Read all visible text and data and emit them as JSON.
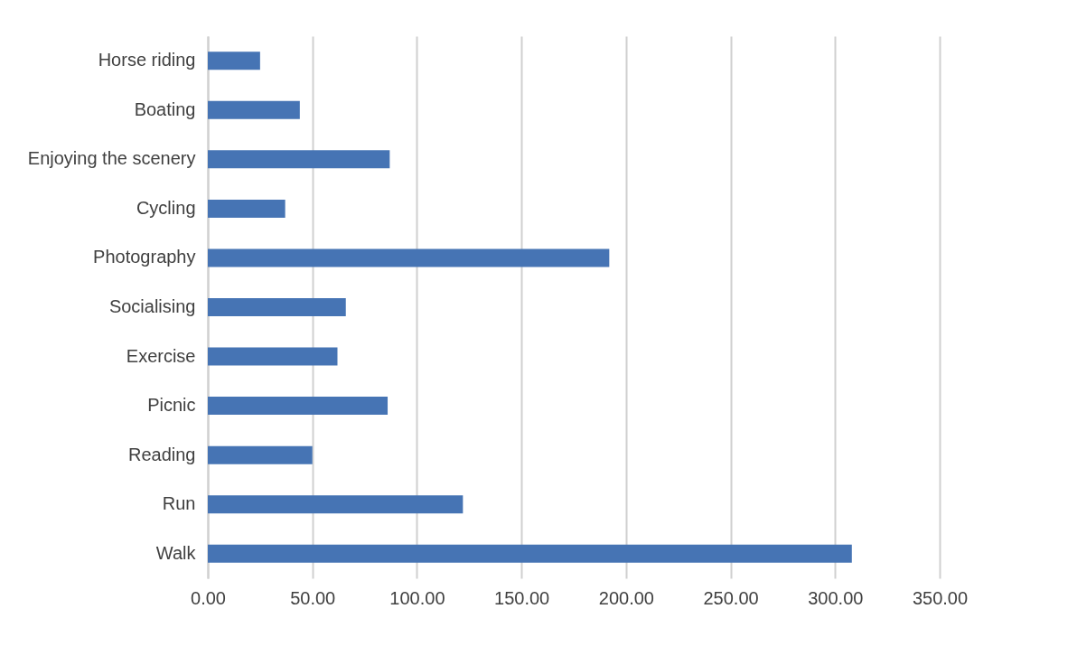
{
  "chart_data": {
    "type": "bar",
    "orientation": "horizontal",
    "categories": [
      "Horse riding",
      "Boating",
      "Enjoying the scenery",
      "Cycling",
      "Photography",
      "Socialising",
      "Exercise",
      "Picnic",
      "Reading",
      "Run",
      "Walk"
    ],
    "values": [
      25,
      44,
      87,
      37,
      192,
      66,
      62,
      86,
      50,
      122,
      308
    ],
    "color": "#4674b4",
    "xlim": [
      0,
      350
    ],
    "xticks": [
      {
        "value": 0,
        "label": "0.00"
      },
      {
        "value": 50,
        "label": "50.00"
      },
      {
        "value": 100,
        "label": "100.00"
      },
      {
        "value": 150,
        "label": "150.00"
      },
      {
        "value": 200,
        "label": "200.00"
      },
      {
        "value": 250,
        "label": "250.00"
      },
      {
        "value": 300,
        "label": "300.00"
      },
      {
        "value": 350,
        "label": "350.00"
      }
    ],
    "grid": "x"
  }
}
